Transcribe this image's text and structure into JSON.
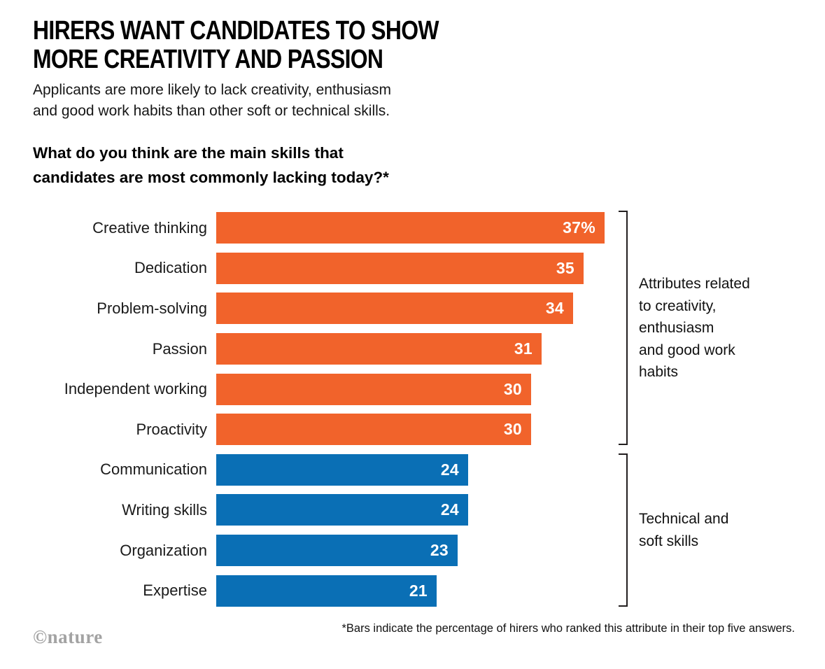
{
  "header": {
    "title_line1": "HIRERS WANT CANDIDATES TO SHOW",
    "title_line2": "MORE CREATIVITY AND PASSION",
    "subtitle": "Applicants are more likely to lack creativity, enthusiasm\nand good work habits than other soft or technical skills.",
    "question": "What do you think are the main skills that\ncandidates are most commonly lacking today?*"
  },
  "chart_data": {
    "type": "bar",
    "orientation": "horizontal",
    "title": "What do you think are the main skills that candidates are most commonly lacking today?*",
    "categories": [
      "Creative thinking",
      "Dedication",
      "Problem-solving",
      "Passion",
      "Independent working",
      "Proactivity",
      "Communication",
      "Writing skills",
      "Organization",
      "Expertise"
    ],
    "values": [
      37,
      35,
      34,
      31,
      30,
      30,
      24,
      24,
      23,
      21
    ],
    "value_labels": [
      "37%",
      "35",
      "34",
      "31",
      "30",
      "30",
      "24",
      "24",
      "23",
      "21"
    ],
    "series_group": [
      "creativity",
      "creativity",
      "creativity",
      "creativity",
      "creativity",
      "creativity",
      "technical",
      "technical",
      "technical",
      "technical"
    ],
    "groups": [
      {
        "id": "creativity",
        "color": "#F1632B",
        "label": "Attributes related\nto creativity,\nenthusiasm\nand good work\nhabits"
      },
      {
        "id": "technical",
        "color": "#0A6FB5",
        "label": "Technical and\nsoft skills"
      }
    ],
    "unit": "%",
    "xlim": [
      0,
      40
    ],
    "grid": false,
    "legend": "none",
    "value_label_position": "inside-end"
  },
  "footer": {
    "footnote": "*Bars indicate the percentage of hirers who ranked this attribute in their top five answers.",
    "credit": "©nature"
  }
}
